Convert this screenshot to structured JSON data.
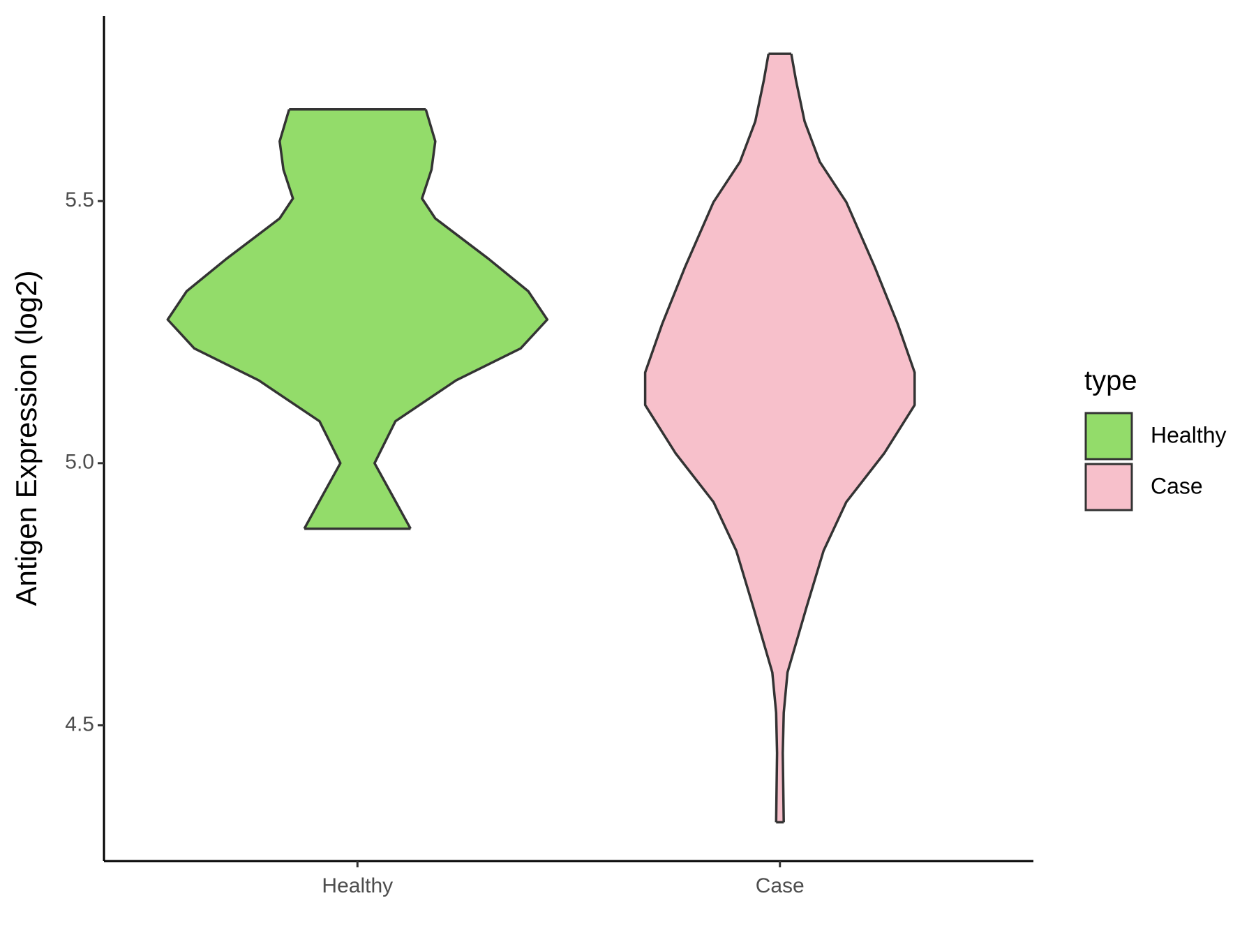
{
  "chart_data": {
    "type": "violin",
    "y_label": "Antigen Expression (log2)",
    "categories": [
      "Healthy",
      "Case"
    ],
    "series": [
      {
        "name": "Healthy",
        "color": "#93dc6a",
        "y": [
          5.675,
          5.614,
          5.56,
          5.505,
          5.467,
          5.39,
          5.328,
          5.274,
          5.219,
          5.158,
          5.08,
          5.0,
          4.941,
          4.875
        ],
        "density": [
          0.36,
          0.41,
          0.39,
          0.34,
          0.41,
          0.69,
          0.9,
          1.0,
          0.86,
          0.52,
          0.2,
          0.09,
          0.18,
          0.28
        ]
      },
      {
        "name": "Case",
        "color": "#f7c0cb",
        "y": [
          5.781,
          5.73,
          5.652,
          5.575,
          5.498,
          5.374,
          5.266,
          5.173,
          5.111,
          5.019,
          4.926,
          4.833,
          4.725,
          4.601,
          4.524,
          4.447,
          4.315
        ],
        "density": [
          0.06,
          0.085,
          0.13,
          0.21,
          0.35,
          0.5,
          0.62,
          0.71,
          0.71,
          0.55,
          0.35,
          0.23,
          0.14,
          0.04,
          0.02,
          0.015,
          0.02
        ]
      }
    ],
    "ylim": [
      4.241,
      5.853
    ],
    "yticks": [
      {
        "value": 4.5,
        "label": "4.5"
      },
      {
        "value": 5.0,
        "label": "5.0"
      },
      {
        "value": 5.5,
        "label": "5.5"
      }
    ],
    "legend_title": "type",
    "legend": "right"
  }
}
